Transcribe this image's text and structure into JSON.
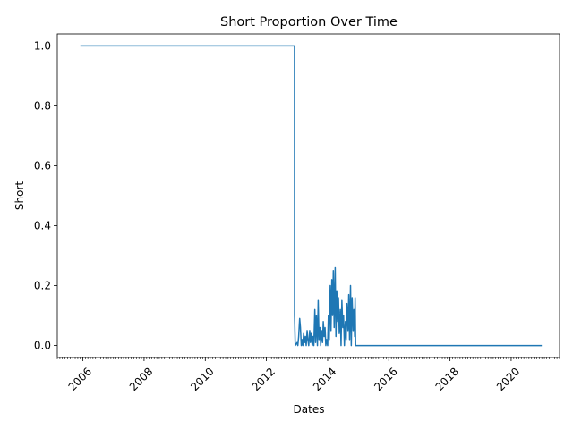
{
  "chart_data": {
    "type": "line",
    "title": "Short Proportion Over Time",
    "xlabel": "Dates",
    "ylabel": "Short",
    "xlim": [
      "2005-03-01",
      "2021-08-01"
    ],
    "ylim": [
      -0.04,
      1.04
    ],
    "x_ticks": [
      "2006",
      "2008",
      "2010",
      "2012",
      "2014",
      "2016",
      "2018",
      "2020"
    ],
    "y_ticks": [
      "0.0",
      "0.2",
      "0.4",
      "0.6",
      "0.8",
      "1.0"
    ],
    "grid": false,
    "color": "#1f77b4",
    "series": [
      {
        "x": [
          "2005-12-01",
          "2012-12-01",
          "2012-12-02",
          "2012-12-10",
          "2013-01-01",
          "2013-01-10",
          "2013-01-20",
          "2013-02-01",
          "2013-02-10",
          "2013-02-20",
          "2013-03-01",
          "2013-03-10",
          "2013-03-20",
          "2013-04-01",
          "2013-04-10",
          "2013-04-20",
          "2013-05-01",
          "2013-05-10",
          "2013-05-20",
          "2013-06-01",
          "2013-06-10",
          "2013-06-20",
          "2013-07-01",
          "2013-07-10",
          "2013-07-20",
          "2013-08-01",
          "2013-08-10",
          "2013-08-20",
          "2013-09-01",
          "2013-09-10",
          "2013-09-20",
          "2013-10-01",
          "2013-10-10",
          "2013-10-20",
          "2013-11-01",
          "2013-11-10",
          "2013-11-20",
          "2013-12-01",
          "2013-12-10",
          "2013-12-20",
          "2014-01-01",
          "2014-01-10",
          "2014-01-20",
          "2014-02-01",
          "2014-02-10",
          "2014-02-20",
          "2014-03-01",
          "2014-03-10",
          "2014-03-20",
          "2014-04-01",
          "2014-04-10",
          "2014-04-20",
          "2014-05-01",
          "2014-05-10",
          "2014-05-20",
          "2014-06-01",
          "2014-06-10",
          "2014-06-20",
          "2014-07-01",
          "2014-07-10",
          "2014-07-20",
          "2014-08-01",
          "2014-08-10",
          "2014-08-20",
          "2014-09-01",
          "2014-09-10",
          "2014-09-20",
          "2014-10-01",
          "2014-10-10",
          "2014-10-20",
          "2014-11-01",
          "2014-11-10",
          "2014-11-20",
          "2014-11-25",
          "2014-12-01",
          "2021-01-01"
        ],
        "y": [
          1.0,
          1.0,
          0.1,
          0.0,
          0.01,
          0.0,
          0.03,
          0.09,
          0.06,
          0.0,
          0.02,
          0.0,
          0.04,
          0.01,
          0.03,
          0.0,
          0.05,
          0.02,
          0.0,
          0.05,
          0.01,
          0.04,
          0.0,
          0.03,
          0.0,
          0.12,
          0.01,
          0.1,
          0.0,
          0.15,
          0.02,
          0.06,
          0.0,
          0.05,
          0.01,
          0.08,
          0.03,
          0.06,
          0.0,
          0.02,
          0.0,
          0.1,
          0.02,
          0.2,
          0.05,
          0.22,
          0.1,
          0.25,
          0.06,
          0.26,
          0.03,
          0.18,
          0.08,
          0.16,
          0.04,
          0.12,
          0.0,
          0.15,
          0.06,
          0.1,
          0.0,
          0.08,
          0.02,
          0.14,
          0.05,
          0.17,
          0.02,
          0.2,
          0.0,
          0.16,
          0.05,
          0.12,
          0.03,
          0.16,
          0.0,
          0.0
        ]
      }
    ]
  }
}
